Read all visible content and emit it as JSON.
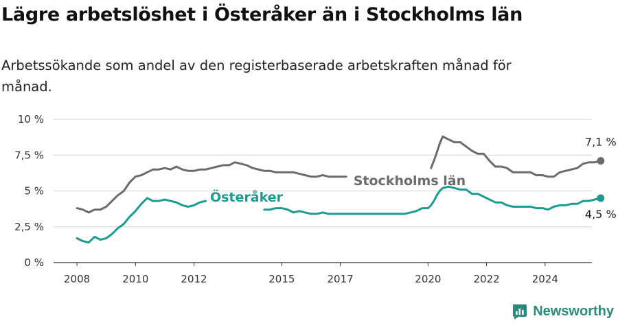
{
  "header": {
    "title": "Lägre arbetslöshet i Österåker än i Stockholms län",
    "subtitle": "Arbetssökande som andel av den registerbaserade arbetskraften månad för månad."
  },
  "brand": {
    "name": "Newsworthy",
    "icon": "newsworthy-logo-icon",
    "color": "#2a8a7c"
  },
  "chart_data": {
    "type": "line",
    "title": "Lägre arbetslöshet i Österåker än i Stockholms län",
    "subtitle": "Arbetssökande som andel av den registerbaserade arbetskraften månad för månad.",
    "xlabel": "",
    "ylabel": "",
    "x_ticks": [
      "2008",
      "2010",
      "2012",
      "2015",
      "2017",
      "2020",
      "2022",
      "2024"
    ],
    "y_ticks": [
      "0 %",
      "2,5 %",
      "5 %",
      "7,5 %",
      "10 %"
    ],
    "ylim": [
      0,
      10
    ],
    "xlim": [
      2007.2,
      2025.6
    ],
    "grid": "horizontal",
    "series": [
      {
        "name": "Stockholms län",
        "color": "#6b6b6f",
        "end_label": "7,1 %",
        "points": [
          [
            2008.0,
            3.8
          ],
          [
            2008.2,
            3.7
          ],
          [
            2008.4,
            3.5
          ],
          [
            2008.6,
            3.7
          ],
          [
            2008.8,
            3.7
          ],
          [
            2009.0,
            3.9
          ],
          [
            2009.2,
            4.3
          ],
          [
            2009.4,
            4.7
          ],
          [
            2009.6,
            5.0
          ],
          [
            2009.8,
            5.6
          ],
          [
            2010.0,
            6.0
          ],
          [
            2010.2,
            6.1
          ],
          [
            2010.4,
            6.3
          ],
          [
            2010.6,
            6.5
          ],
          [
            2010.8,
            6.5
          ],
          [
            2011.0,
            6.6
          ],
          [
            2011.2,
            6.5
          ],
          [
            2011.4,
            6.7
          ],
          [
            2011.6,
            6.5
          ],
          [
            2011.8,
            6.4
          ],
          [
            2012.0,
            6.4
          ],
          [
            2012.2,
            6.5
          ],
          [
            2012.4,
            6.5
          ],
          [
            2012.6,
            6.6
          ],
          [
            2012.8,
            6.7
          ],
          [
            2013.0,
            6.8
          ],
          [
            2013.2,
            6.8
          ],
          [
            2013.4,
            7.0
          ],
          [
            2013.6,
            6.9
          ],
          [
            2013.8,
            6.8
          ],
          [
            2014.0,
            6.6
          ],
          [
            2014.2,
            6.5
          ],
          [
            2014.4,
            6.4
          ],
          [
            2014.6,
            6.4
          ],
          [
            2014.8,
            6.3
          ],
          [
            2015.0,
            6.3
          ],
          [
            2015.2,
            6.3
          ],
          [
            2015.4,
            6.3
          ],
          [
            2015.6,
            6.2
          ],
          [
            2015.8,
            6.1
          ],
          [
            2016.0,
            6.0
          ],
          [
            2016.2,
            6.0
          ],
          [
            2016.4,
            6.1
          ],
          [
            2016.6,
            6.0
          ],
          [
            2016.8,
            6.0
          ],
          [
            2017.0,
            6.0
          ],
          [
            2017.2,
            6.0
          ],
          [
            2017.4,
            5.9
          ],
          [
            2017.6,
            5.9
          ],
          [
            2017.8,
            5.9
          ],
          [
            2018.0,
            5.9
          ],
          [
            2018.2,
            6.0
          ],
          [
            2018.4,
            6.0
          ],
          [
            2018.6,
            6.0
          ],
          [
            2018.8,
            6.0
          ],
          [
            2019.0,
            6.0
          ],
          [
            2019.2,
            6.0
          ],
          [
            2019.4,
            6.0
          ],
          [
            2019.6,
            6.1
          ],
          [
            2019.8,
            6.2
          ],
          [
            2020.0,
            6.2
          ],
          [
            2020.1,
            6.6
          ],
          [
            2020.2,
            7.1
          ],
          [
            2020.3,
            7.7
          ],
          [
            2020.4,
            8.3
          ],
          [
            2020.5,
            8.8
          ],
          [
            2020.7,
            8.6
          ],
          [
            2020.9,
            8.4
          ],
          [
            2021.1,
            8.4
          ],
          [
            2021.3,
            8.1
          ],
          [
            2021.5,
            7.8
          ],
          [
            2021.7,
            7.6
          ],
          [
            2021.9,
            7.6
          ],
          [
            2022.1,
            7.1
          ],
          [
            2022.3,
            6.7
          ],
          [
            2022.5,
            6.7
          ],
          [
            2022.7,
            6.6
          ],
          [
            2022.9,
            6.3
          ],
          [
            2023.1,
            6.3
          ],
          [
            2023.3,
            6.3
          ],
          [
            2023.5,
            6.3
          ],
          [
            2023.7,
            6.1
          ],
          [
            2023.9,
            6.1
          ],
          [
            2024.1,
            6.0
          ],
          [
            2024.3,
            6.0
          ],
          [
            2024.5,
            6.3
          ],
          [
            2024.7,
            6.4
          ],
          [
            2024.9,
            6.5
          ],
          [
            2025.1,
            6.6
          ],
          [
            2025.3,
            6.9
          ],
          [
            2025.5,
            7.0
          ],
          [
            2025.7,
            7.0
          ],
          [
            2025.9,
            7.1
          ]
        ]
      },
      {
        "name": "Österåker",
        "color": "#1a9c90",
        "end_label": "4,5 %",
        "points": [
          [
            2008.0,
            1.7
          ],
          [
            2008.2,
            1.5
          ],
          [
            2008.4,
            1.4
          ],
          [
            2008.6,
            1.8
          ],
          [
            2008.8,
            1.6
          ],
          [
            2009.0,
            1.7
          ],
          [
            2009.2,
            2.0
          ],
          [
            2009.4,
            2.4
          ],
          [
            2009.6,
            2.7
          ],
          [
            2009.8,
            3.2
          ],
          [
            2010.0,
            3.6
          ],
          [
            2010.2,
            4.1
          ],
          [
            2010.4,
            4.5
          ],
          [
            2010.6,
            4.3
          ],
          [
            2010.8,
            4.3
          ],
          [
            2011.0,
            4.4
          ],
          [
            2011.2,
            4.3
          ],
          [
            2011.4,
            4.2
          ],
          [
            2011.6,
            4.0
          ],
          [
            2011.8,
            3.9
          ],
          [
            2012.0,
            4.0
          ],
          [
            2012.2,
            4.2
          ],
          [
            2012.4,
            4.3
          ],
          [
            2012.6,
            4.1
          ],
          [
            2012.8,
            4.0
          ],
          [
            2013.0,
            4.1
          ],
          [
            2013.2,
            4.0
          ],
          [
            2013.4,
            3.9
          ],
          [
            2013.6,
            3.8
          ],
          [
            2013.8,
            3.8
          ],
          [
            2014.0,
            3.6
          ],
          [
            2014.2,
            3.7
          ],
          [
            2014.4,
            3.7
          ],
          [
            2014.6,
            3.7
          ],
          [
            2014.8,
            3.8
          ],
          [
            2015.0,
            3.8
          ],
          [
            2015.2,
            3.7
          ],
          [
            2015.4,
            3.5
          ],
          [
            2015.6,
            3.6
          ],
          [
            2015.8,
            3.5
          ],
          [
            2016.0,
            3.4
          ],
          [
            2016.2,
            3.4
          ],
          [
            2016.4,
            3.5
          ],
          [
            2016.6,
            3.4
          ],
          [
            2016.8,
            3.4
          ],
          [
            2017.0,
            3.4
          ],
          [
            2017.2,
            3.4
          ],
          [
            2017.4,
            3.4
          ],
          [
            2017.6,
            3.4
          ],
          [
            2017.8,
            3.4
          ],
          [
            2018.0,
            3.4
          ],
          [
            2018.2,
            3.4
          ],
          [
            2018.4,
            3.4
          ],
          [
            2018.6,
            3.4
          ],
          [
            2018.8,
            3.4
          ],
          [
            2019.0,
            3.4
          ],
          [
            2019.2,
            3.4
          ],
          [
            2019.4,
            3.5
          ],
          [
            2019.6,
            3.6
          ],
          [
            2019.8,
            3.8
          ],
          [
            2020.0,
            3.8
          ],
          [
            2020.1,
            4.0
          ],
          [
            2020.2,
            4.3
          ],
          [
            2020.3,
            4.7
          ],
          [
            2020.4,
            5.0
          ],
          [
            2020.5,
            5.2
          ],
          [
            2020.7,
            5.3
          ],
          [
            2020.9,
            5.2
          ],
          [
            2021.1,
            5.1
          ],
          [
            2021.3,
            5.1
          ],
          [
            2021.5,
            4.8
          ],
          [
            2021.7,
            4.8
          ],
          [
            2021.9,
            4.6
          ],
          [
            2022.1,
            4.4
          ],
          [
            2022.3,
            4.2
          ],
          [
            2022.5,
            4.2
          ],
          [
            2022.7,
            4.0
          ],
          [
            2022.9,
            3.9
          ],
          [
            2023.1,
            3.9
          ],
          [
            2023.3,
            3.9
          ],
          [
            2023.5,
            3.9
          ],
          [
            2023.7,
            3.8
          ],
          [
            2023.9,
            3.8
          ],
          [
            2024.1,
            3.7
          ],
          [
            2024.3,
            3.9
          ],
          [
            2024.5,
            4.0
          ],
          [
            2024.7,
            4.0
          ],
          [
            2024.9,
            4.1
          ],
          [
            2025.1,
            4.1
          ],
          [
            2025.3,
            4.3
          ],
          [
            2025.5,
            4.3
          ],
          [
            2025.7,
            4.4
          ],
          [
            2025.9,
            4.5
          ]
        ]
      }
    ]
  }
}
